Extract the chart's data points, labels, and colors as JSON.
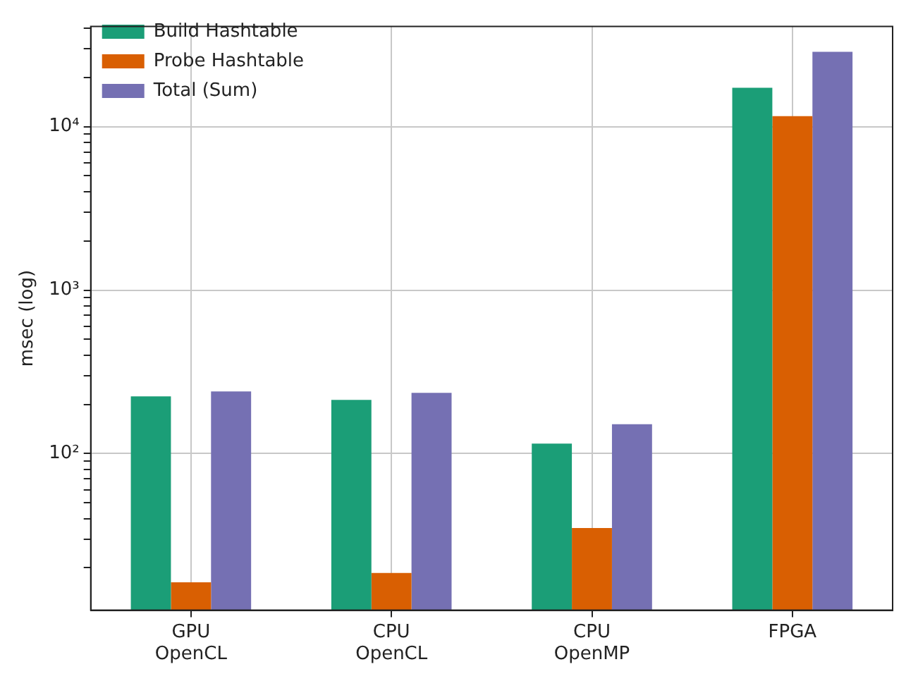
{
  "chart_data": {
    "type": "bar",
    "ylabel": "msec (log)",
    "categories": [
      "GPU\nOpenCL",
      "CPU\nOpenCL",
      "CPU\nOpenMP",
      "FPGA"
    ],
    "series": [
      {
        "name": "Build Hashtable",
        "color": "#1b9e77",
        "values": [
          224,
          213,
          115,
          17300
        ]
      },
      {
        "name": "Probe Hashtable",
        "color": "#d95f02",
        "values": [
          16.3,
          18.6,
          35,
          11600
        ]
      },
      {
        "name": "Total (Sum)",
        "color": "#7570b3",
        "values": [
          240,
          235,
          151,
          28700
        ]
      }
    ],
    "log": "y",
    "ylim": [
      11,
      41000
    ],
    "yticks": [
      {
        "value": 20,
        "label": null
      },
      {
        "value": 30,
        "label": null
      },
      {
        "value": 40,
        "label": null
      },
      {
        "value": 50,
        "label": null
      },
      {
        "value": 60,
        "label": null
      },
      {
        "value": 70,
        "label": null
      },
      {
        "value": 80,
        "label": null
      },
      {
        "value": 90,
        "label": null
      },
      {
        "value": 100,
        "label": "10²"
      },
      {
        "value": 200,
        "label": null
      },
      {
        "value": 300,
        "label": null
      },
      {
        "value": 400,
        "label": null
      },
      {
        "value": 500,
        "label": null
      },
      {
        "value": 600,
        "label": null
      },
      {
        "value": 700,
        "label": null
      },
      {
        "value": 800,
        "label": null
      },
      {
        "value": 900,
        "label": null
      },
      {
        "value": 1000,
        "label": "10³"
      },
      {
        "value": 2000,
        "label": null
      },
      {
        "value": 3000,
        "label": null
      },
      {
        "value": 4000,
        "label": null
      },
      {
        "value": 5000,
        "label": null
      },
      {
        "value": 6000,
        "label": null
      },
      {
        "value": 7000,
        "label": null
      },
      {
        "value": 8000,
        "label": null
      },
      {
        "value": 9000,
        "label": null
      },
      {
        "value": 10000,
        "label": "10⁴"
      },
      {
        "value": 20000,
        "label": null
      },
      {
        "value": 30000,
        "label": null
      },
      {
        "value": 40000,
        "label": null
      }
    ],
    "grid": true,
    "legend": "top left"
  }
}
